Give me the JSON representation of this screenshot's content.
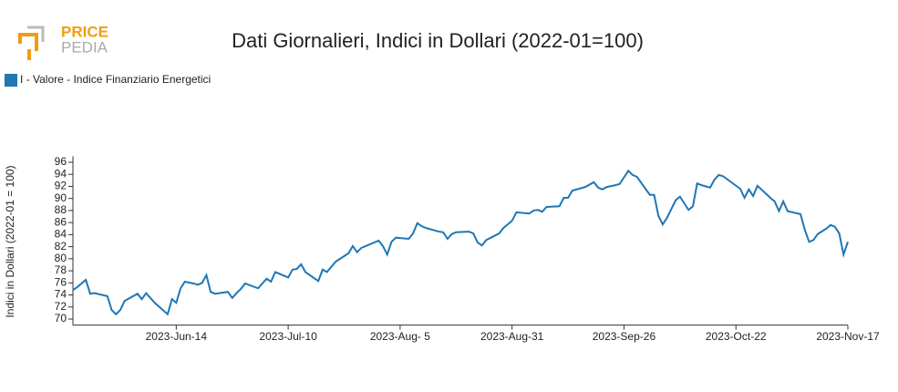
{
  "logo": {
    "top": "PRICE",
    "bottom": "PEDIA"
  },
  "chart_data": {
    "type": "line",
    "title": "Dati Giornalieri, Indici in Dollari (2022-01=100)",
    "y_label": "Indici in Dollari (2022-01 = 100)",
    "legend": "top-left",
    "grid": false,
    "x": [
      "2023-05-21",
      "2023-05-22",
      "2023-05-24",
      "2023-05-25",
      "2023-05-26",
      "2023-05-29",
      "2023-05-30",
      "2023-05-31",
      "2023-06-01",
      "2023-06-02",
      "2023-06-05",
      "2023-06-06",
      "2023-06-07",
      "2023-06-09",
      "2023-06-12",
      "2023-06-13",
      "2023-06-14",
      "2023-06-15",
      "2023-06-16",
      "2023-06-18",
      "2023-06-19",
      "2023-06-20",
      "2023-06-21",
      "2023-06-22",
      "2023-06-23",
      "2023-06-26",
      "2023-06-27",
      "2023-06-28",
      "2023-06-29",
      "2023-06-30",
      "2023-07-03",
      "2023-07-05",
      "2023-07-06",
      "2023-07-07",
      "2023-07-10",
      "2023-07-11",
      "2023-07-12",
      "2023-07-13",
      "2023-07-14",
      "2023-07-17",
      "2023-07-18",
      "2023-07-19",
      "2023-07-21",
      "2023-07-24",
      "2023-07-25",
      "2023-07-26",
      "2023-07-27",
      "2023-07-31",
      "2023-08-01",
      "2023-08-02",
      "2023-08-03",
      "2023-08-04",
      "2023-08-07",
      "2023-08-08",
      "2023-08-09",
      "2023-08-10",
      "2023-08-11",
      "2023-08-14",
      "2023-08-15",
      "2023-08-16",
      "2023-08-17",
      "2023-08-18",
      "2023-08-21",
      "2023-08-22",
      "2023-08-23",
      "2023-08-24",
      "2023-08-25",
      "2023-08-28",
      "2023-08-29",
      "2023-08-31",
      "2023-09-01",
      "2023-09-04",
      "2023-09-05",
      "2023-09-06",
      "2023-09-07",
      "2023-09-08",
      "2023-09-11",
      "2023-09-12",
      "2023-09-13",
      "2023-09-14",
      "2023-09-17",
      "2023-09-19",
      "2023-09-20",
      "2023-09-21",
      "2023-09-22",
      "2023-09-24",
      "2023-09-25",
      "2023-09-27",
      "2023-09-28",
      "2023-09-29",
      "2023-10-02",
      "2023-10-03",
      "2023-10-04",
      "2023-10-05",
      "2023-10-06",
      "2023-10-08",
      "2023-10-09",
      "2023-10-11",
      "2023-10-12",
      "2023-10-13",
      "2023-10-14",
      "2023-10-16",
      "2023-10-17",
      "2023-10-18",
      "2023-10-19",
      "2023-10-23",
      "2023-10-24",
      "2023-10-25",
      "2023-10-26",
      "2023-10-27",
      "2023-10-30",
      "2023-10-31",
      "2023-11-01",
      "2023-11-02",
      "2023-11-03",
      "2023-11-06",
      "2023-11-07",
      "2023-11-08",
      "2023-11-09",
      "2023-11-10",
      "2023-11-12",
      "2023-11-13",
      "2023-11-14",
      "2023-11-15",
      "2023-11-16",
      "2023-11-17"
    ],
    "series": [
      {
        "name": "I - Valore - Indice Finanziario Energetici",
        "color": "#1f77b4",
        "values": [
          74.8,
          75.3,
          76.5,
          74.2,
          74.3,
          73.8,
          71.5,
          70.8,
          71.5,
          73,
          74.2,
          73.3,
          74.3,
          72.7,
          70.8,
          73.3,
          72.7,
          75.1,
          76.2,
          75.9,
          75.7,
          76,
          77.3,
          74.5,
          74.2,
          74.5,
          73.5,
          74.3,
          75,
          75.9,
          75.1,
          76.7,
          76.2,
          77.8,
          76.9,
          78.2,
          78.3,
          79.1,
          77.8,
          76.3,
          78.2,
          77.8,
          79.5,
          80.9,
          82.1,
          81.1,
          81.8,
          83,
          82.1,
          80.7,
          82.8,
          83.5,
          83.3,
          84.2,
          85.9,
          85.4,
          85.1,
          84.5,
          84.4,
          83.3,
          84.1,
          84.4,
          84.5,
          84.2,
          82.7,
          82.2,
          83.1,
          84.2,
          85.1,
          86.3,
          87.7,
          87.5,
          88,
          88.1,
          87.8,
          88.6,
          88.7,
          90.1,
          90.1,
          91.3,
          91.9,
          92.7,
          91.8,
          91.5,
          91.9,
          92.2,
          92.4,
          94.6,
          93.9,
          93.6,
          90.6,
          90.6,
          87.1,
          85.7,
          86.8,
          89.7,
          90.3,
          88.1,
          88.7,
          92.5,
          92.2,
          91.8,
          93.1,
          93.9,
          93.7,
          91.6,
          90.1,
          91.5,
          90.4,
          92.1,
          90.1,
          89.5,
          87.9,
          89.5,
          87.9,
          87.4,
          84.8,
          82.8,
          83.1,
          84.1,
          85,
          85.6,
          85.3,
          84.2,
          80.7,
          82.8
        ]
      }
    ],
    "xlim": [
      "2023-05-21",
      "2023-11-17"
    ],
    "xticks": [
      {
        "value": "2023-06-14",
        "label": "2023-Jun-14"
      },
      {
        "value": "2023-07-10",
        "label": "2023-Jul-10"
      },
      {
        "value": "2023-08-05",
        "label": "2023-Aug- 5"
      },
      {
        "value": "2023-08-31",
        "label": "2023-Aug-31"
      },
      {
        "value": "2023-09-26",
        "label": "2023-Sep-26"
      },
      {
        "value": "2023-10-22",
        "label": "2023-Oct-22"
      },
      {
        "value": "2023-11-17",
        "label": "2023-Nov-17"
      }
    ],
    "ylim": [
      69,
      97
    ],
    "yticks": [
      70,
      72,
      74,
      76,
      78,
      80,
      82,
      84,
      86,
      88,
      90,
      92,
      94,
      96
    ]
  }
}
